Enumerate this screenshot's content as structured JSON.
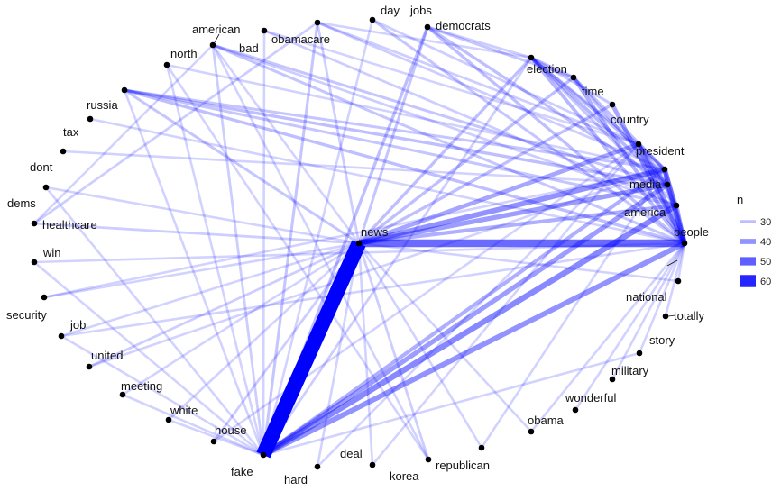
{
  "chart_data": {
    "type": "network",
    "title": "",
    "edge_color": "#0000ff",
    "node_color": "#000000",
    "legend": {
      "title": "n",
      "placement": "right",
      "entries": [
        {
          "label": "30",
          "value": 30
        },
        {
          "label": "40",
          "value": 40
        },
        {
          "label": "50",
          "value": 50
        },
        {
          "label": "60",
          "value": 60
        }
      ]
    },
    "nodes": [
      "news",
      "people",
      "america",
      "media",
      "president",
      "country",
      "time",
      "election",
      "democrats",
      "jobs",
      "day",
      "obamacare",
      "bad",
      "american",
      "north",
      "russia",
      "tax",
      "dont",
      "dems",
      "healthcare",
      "win",
      "security",
      "job",
      "united",
      "meeting",
      "white",
      "house",
      "fake",
      "hard",
      "deal",
      "korea",
      "republican",
      "obama",
      "wonderful",
      "military",
      "story",
      "totally",
      "national"
    ],
    "edges": [
      {
        "source": "fake",
        "target": "news",
        "n": 66
      },
      {
        "source": "news",
        "target": "people",
        "n": 48
      },
      {
        "source": "fake",
        "target": "people",
        "n": 40
      },
      {
        "source": "fake",
        "target": "america",
        "n": 42
      },
      {
        "source": "fake",
        "target": "media",
        "n": 38
      },
      {
        "source": "fake",
        "target": "president",
        "n": 34
      },
      {
        "source": "news",
        "target": "president",
        "n": 40
      },
      {
        "source": "news",
        "target": "media",
        "n": 38
      },
      {
        "source": "news",
        "target": "country",
        "n": 36
      },
      {
        "source": "news",
        "target": "america",
        "n": 34
      },
      {
        "source": "news",
        "target": "time",
        "n": 30
      },
      {
        "source": "news",
        "target": "election",
        "n": 30
      },
      {
        "source": "news",
        "target": "democrats",
        "n": 30
      },
      {
        "source": "news",
        "target": "jobs",
        "n": 28
      },
      {
        "source": "news",
        "target": "obamacare",
        "n": 26
      },
      {
        "source": "news",
        "target": "healthcare",
        "n": 26
      },
      {
        "source": "news",
        "target": "russia",
        "n": 28
      },
      {
        "source": "news",
        "target": "dems",
        "n": 24
      },
      {
        "source": "news",
        "target": "security",
        "n": 24
      },
      {
        "source": "news",
        "target": "job",
        "n": 24
      },
      {
        "source": "news",
        "target": "united",
        "n": 26
      },
      {
        "source": "news",
        "target": "meeting",
        "n": 24
      },
      {
        "source": "news",
        "target": "white",
        "n": 24
      },
      {
        "source": "news",
        "target": "house",
        "n": 26
      },
      {
        "source": "news",
        "target": "hard",
        "n": 24
      },
      {
        "source": "news",
        "target": "deal",
        "n": 24
      },
      {
        "source": "news",
        "target": "korea",
        "n": 26
      },
      {
        "source": "news",
        "target": "republican",
        "n": 24
      },
      {
        "source": "news",
        "target": "obama",
        "n": 24
      },
      {
        "source": "news",
        "target": "national",
        "n": 24
      },
      {
        "source": "news",
        "target": "american",
        "n": 24
      },
      {
        "source": "people",
        "target": "president",
        "n": 40
      },
      {
        "source": "people",
        "target": "country",
        "n": 38
      },
      {
        "source": "people",
        "target": "time",
        "n": 36
      },
      {
        "source": "people",
        "target": "election",
        "n": 34
      },
      {
        "source": "people",
        "target": "democrats",
        "n": 32
      },
      {
        "source": "people",
        "target": "jobs",
        "n": 30
      },
      {
        "source": "people",
        "target": "day",
        "n": 28
      },
      {
        "source": "people",
        "target": "russia",
        "n": 30
      },
      {
        "source": "people",
        "target": "american",
        "n": 28
      },
      {
        "source": "people",
        "target": "tax",
        "n": 24
      },
      {
        "source": "people",
        "target": "win",
        "n": 24
      },
      {
        "source": "people",
        "target": "job",
        "n": 24
      },
      {
        "source": "people",
        "target": "obama",
        "n": 24
      },
      {
        "source": "people",
        "target": "wonderful",
        "n": 24
      },
      {
        "source": "people",
        "target": "military",
        "n": 24
      },
      {
        "source": "people",
        "target": "story",
        "n": 24
      },
      {
        "source": "people",
        "target": "totally",
        "n": 24
      },
      {
        "source": "people",
        "target": "national",
        "n": 24
      },
      {
        "source": "people",
        "target": "media",
        "n": 38
      },
      {
        "source": "people",
        "target": "america",
        "n": 36
      },
      {
        "source": "america",
        "target": "president",
        "n": 32
      },
      {
        "source": "america",
        "target": "country",
        "n": 30
      },
      {
        "source": "america",
        "target": "democrats",
        "n": 28
      },
      {
        "source": "america",
        "target": "russia",
        "n": 28
      },
      {
        "source": "america",
        "target": "bad",
        "n": 26
      },
      {
        "source": "america",
        "target": "american",
        "n": 26
      },
      {
        "source": "media",
        "target": "president",
        "n": 34
      },
      {
        "source": "media",
        "target": "country",
        "n": 30
      },
      {
        "source": "media",
        "target": "election",
        "n": 30
      },
      {
        "source": "media",
        "target": "democrats",
        "n": 32
      },
      {
        "source": "media",
        "target": "jobs",
        "n": 30
      },
      {
        "source": "media",
        "target": "russia",
        "n": 30
      },
      {
        "source": "media",
        "target": "american",
        "n": 28
      },
      {
        "source": "media",
        "target": "dont",
        "n": 24
      },
      {
        "source": "president",
        "target": "country",
        "n": 30
      },
      {
        "source": "president",
        "target": "democrats",
        "n": 30
      },
      {
        "source": "president",
        "target": "election",
        "n": 30
      },
      {
        "source": "president",
        "target": "obamacare",
        "n": 26
      },
      {
        "source": "president",
        "target": "russia",
        "n": 28
      },
      {
        "source": "president",
        "target": "north",
        "n": 24
      },
      {
        "source": "president",
        "target": "security",
        "n": 24
      },
      {
        "source": "country",
        "target": "democrats",
        "n": 28
      },
      {
        "source": "country",
        "target": "day",
        "n": 26
      },
      {
        "source": "country",
        "target": "obamacare",
        "n": 26
      },
      {
        "source": "country",
        "target": "bad",
        "n": 24
      },
      {
        "source": "time",
        "target": "democrats",
        "n": 28
      },
      {
        "source": "election",
        "target": "democrats",
        "n": 30
      },
      {
        "source": "election",
        "target": "jobs",
        "n": 28
      },
      {
        "source": "jobs",
        "target": "democrats",
        "n": 26
      },
      {
        "source": "fake",
        "target": "jobs",
        "n": 30
      },
      {
        "source": "fake",
        "target": "obamacare",
        "n": 28
      },
      {
        "source": "fake",
        "target": "democrats",
        "n": 26
      },
      {
        "source": "fake",
        "target": "day",
        "n": 24
      },
      {
        "source": "fake",
        "target": "american",
        "n": 26
      },
      {
        "source": "fake",
        "target": "russia",
        "n": 24
      },
      {
        "source": "fake",
        "target": "bad",
        "n": 24
      },
      {
        "source": "fake",
        "target": "north",
        "n": 24
      },
      {
        "source": "fake",
        "target": "dems",
        "n": 24
      },
      {
        "source": "fake",
        "target": "win",
        "n": 24
      },
      {
        "source": "fake",
        "target": "job",
        "n": 24
      },
      {
        "source": "fake",
        "target": "white",
        "n": 24
      },
      {
        "source": "fake",
        "target": "meeting",
        "n": 24
      },
      {
        "source": "fake",
        "target": "story",
        "n": 24
      },
      {
        "source": "healthcare",
        "target": "obamacare",
        "n": 26
      },
      {
        "source": "healthcare",
        "target": "american",
        "n": 24
      },
      {
        "source": "united",
        "target": "president",
        "n": 24
      },
      {
        "source": "korea",
        "target": "north",
        "n": 24
      },
      {
        "source": "hard",
        "target": "country",
        "n": 24
      },
      {
        "source": "deal",
        "target": "country",
        "n": 24
      },
      {
        "source": "republican",
        "target": "president",
        "n": 24
      },
      {
        "source": "house",
        "target": "country",
        "n": 24
      },
      {
        "source": "american",
        "target": "korea",
        "n": 24
      },
      {
        "source": "obamacare",
        "target": "democrats",
        "n": 24
      }
    ]
  }
}
